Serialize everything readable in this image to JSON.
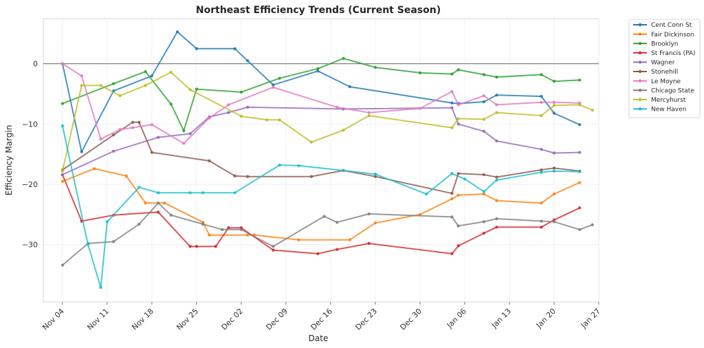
{
  "chart_data": {
    "type": "line",
    "title": "Northeast Efficiency Trends (Current Season)",
    "xlabel": "Date",
    "ylabel": "Efficiency Margin",
    "x_ticks": [
      "Nov 04",
      "Nov 11",
      "Nov 18",
      "Nov 25",
      "Dec 02",
      "Dec 09",
      "Dec 16",
      "Dec 23",
      "Dec 30",
      "Jan 06",
      "Jan 13",
      "Jan 20",
      "Jan 27"
    ],
    "x_tick_dates": [
      "2024-11-04",
      "2024-11-11",
      "2024-11-18",
      "2024-11-25",
      "2024-12-02",
      "2024-12-09",
      "2024-12-16",
      "2024-12-23",
      "2024-12-30",
      "2025-01-06",
      "2025-01-13",
      "2025-01-20",
      "2025-01-27"
    ],
    "xlim": [
      "2024-11-01",
      "2025-01-27"
    ],
    "ylim": [
      -39.5,
      7.5
    ],
    "y_ticks": [
      -30,
      -20,
      -10,
      0
    ],
    "reference_line": 0,
    "grid": true,
    "legend_position": "outside-right",
    "series": [
      {
        "name": "Cent Conn St",
        "color": "#1f77b4",
        "points": [
          [
            "2024-11-04",
            0.0
          ],
          [
            "2024-11-07",
            -14.6
          ],
          [
            "2024-11-12",
            -4.5
          ],
          [
            "2024-11-18",
            -2.0
          ],
          [
            "2024-11-22",
            5.3
          ],
          [
            "2024-11-25",
            2.5
          ],
          [
            "2024-12-01",
            2.5
          ],
          [
            "2024-12-03",
            0.5
          ],
          [
            "2024-12-07",
            -3.5
          ],
          [
            "2024-12-14",
            -1.2
          ],
          [
            "2024-12-19",
            -3.8
          ],
          [
            "2025-01-04",
            -6.5
          ],
          [
            "2025-01-05",
            -6.6
          ],
          [
            "2025-01-09",
            -6.3
          ],
          [
            "2025-01-11",
            -5.2
          ],
          [
            "2025-01-18",
            -5.4
          ],
          [
            "2025-01-20",
            -8.2
          ],
          [
            "2025-01-24",
            -10.1
          ]
        ]
      },
      {
        "name": "Fair Dickinson",
        "color": "#ff7f0e",
        "points": [
          [
            "2024-11-04",
            -19.5
          ],
          [
            "2024-11-09",
            -17.4
          ],
          [
            "2024-11-14",
            -18.6
          ],
          [
            "2024-11-17",
            -23.1
          ],
          [
            "2024-11-20",
            -23.1
          ],
          [
            "2024-11-26",
            -26.3
          ],
          [
            "2024-11-27",
            -28.4
          ],
          [
            "2024-12-03",
            -28.4
          ],
          [
            "2024-12-04",
            -28.4
          ],
          [
            "2024-12-11",
            -29.2
          ],
          [
            "2024-12-19",
            -29.2
          ],
          [
            "2024-12-23",
            -26.4
          ],
          [
            "2024-12-30",
            -25.0
          ],
          [
            "2025-01-04",
            -22.4
          ],
          [
            "2025-01-05",
            -21.8
          ],
          [
            "2025-01-09",
            -21.6
          ],
          [
            "2025-01-11",
            -22.7
          ],
          [
            "2025-01-18",
            -23.1
          ],
          [
            "2025-01-20",
            -21.6
          ],
          [
            "2025-01-24",
            -19.7
          ]
        ]
      },
      {
        "name": "Brooklyn",
        "color": "#2ca02c",
        "points": [
          [
            "2024-11-04",
            -6.6
          ],
          [
            "2024-11-12",
            -3.3
          ],
          [
            "2024-11-17",
            -1.3
          ],
          [
            "2024-11-21",
            -6.7
          ],
          [
            "2024-11-23",
            -11.1
          ],
          [
            "2024-11-25",
            -4.2
          ],
          [
            "2024-12-02",
            -4.7
          ],
          [
            "2024-12-08",
            -2.4
          ],
          [
            "2024-12-14",
            -0.8
          ],
          [
            "2024-12-18",
            0.9
          ],
          [
            "2024-12-23",
            -0.6
          ],
          [
            "2024-12-30",
            -1.5
          ],
          [
            "2025-01-04",
            -1.7
          ],
          [
            "2025-01-05",
            -1.0
          ],
          [
            "2025-01-09",
            -1.8
          ],
          [
            "2025-01-11",
            -2.2
          ],
          [
            "2025-01-18",
            -1.8
          ],
          [
            "2025-01-20",
            -2.9
          ],
          [
            "2025-01-24",
            -2.7
          ]
        ]
      },
      {
        "name": "St Francis (PA)",
        "color": "#d62728",
        "points": [
          [
            "2024-11-04",
            -18.4
          ],
          [
            "2024-11-07",
            -26.1
          ],
          [
            "2024-11-12",
            -25.1
          ],
          [
            "2024-11-19",
            -24.6
          ],
          [
            "2024-11-24",
            -30.3
          ],
          [
            "2024-11-25",
            -30.3
          ],
          [
            "2024-11-28",
            -30.3
          ],
          [
            "2024-11-30",
            -27.2
          ],
          [
            "2024-12-02",
            -27.2
          ],
          [
            "2024-12-07",
            -30.9
          ],
          [
            "2024-12-14",
            -31.5
          ],
          [
            "2024-12-17",
            -30.8
          ],
          [
            "2024-12-22",
            -29.8
          ],
          [
            "2025-01-04",
            -31.5
          ],
          [
            "2025-01-05",
            -30.2
          ],
          [
            "2025-01-09",
            -28.1
          ],
          [
            "2025-01-11",
            -27.1
          ],
          [
            "2025-01-18",
            -27.1
          ],
          [
            "2025-01-20",
            -25.9
          ],
          [
            "2025-01-24",
            -23.9
          ]
        ]
      },
      {
        "name": "Wagner",
        "color": "#9467bd",
        "points": [
          [
            "2024-11-04",
            -18.4
          ],
          [
            "2024-11-12",
            -14.5
          ],
          [
            "2024-11-19",
            -12.2
          ],
          [
            "2024-11-24",
            -11.6
          ],
          [
            "2024-11-27",
            -8.8
          ],
          [
            "2024-11-30",
            -8.1
          ],
          [
            "2024-12-03",
            -7.2
          ],
          [
            "2024-12-18",
            -7.5
          ],
          [
            "2025-01-04",
            -7.3
          ],
          [
            "2025-01-05",
            -10.0
          ],
          [
            "2025-01-09",
            -11.2
          ],
          [
            "2025-01-11",
            -12.8
          ],
          [
            "2025-01-18",
            -14.2
          ],
          [
            "2025-01-20",
            -14.8
          ],
          [
            "2025-01-24",
            -14.7
          ]
        ]
      },
      {
        "name": "Stonehill",
        "color": "#8c564b",
        "points": [
          [
            "2024-11-04",
            -17.6
          ],
          [
            "2024-11-12",
            -11.8
          ],
          [
            "2024-11-15",
            -9.7
          ],
          [
            "2024-11-16",
            -9.7
          ],
          [
            "2024-11-18",
            -14.7
          ],
          [
            "2024-11-27",
            -16.1
          ],
          [
            "2024-12-01",
            -18.6
          ],
          [
            "2024-12-03",
            -18.7
          ],
          [
            "2024-12-13",
            -18.7
          ],
          [
            "2024-12-18",
            -17.7
          ],
          [
            "2024-12-23",
            -18.7
          ],
          [
            "2025-01-04",
            -21.5
          ],
          [
            "2025-01-05",
            -18.2
          ],
          [
            "2025-01-09",
            -18.4
          ],
          [
            "2025-01-11",
            -18.8
          ],
          [
            "2025-01-18",
            -17.6
          ],
          [
            "2025-01-20",
            -17.3
          ],
          [
            "2025-01-24",
            -17.8
          ]
        ]
      },
      {
        "name": "Le Moyne",
        "color": "#e377c2",
        "points": [
          [
            "2024-11-04",
            0.0
          ],
          [
            "2024-11-07",
            -2.0
          ],
          [
            "2024-11-10",
            -12.5
          ],
          [
            "2024-11-13",
            -10.9
          ],
          [
            "2024-11-15",
            -10.6
          ],
          [
            "2024-11-18",
            -10.1
          ],
          [
            "2024-11-23",
            -13.2
          ],
          [
            "2024-11-27",
            -9.0
          ],
          [
            "2024-11-30",
            -6.8
          ],
          [
            "2024-12-07",
            -3.9
          ],
          [
            "2024-12-17",
            -7.2
          ],
          [
            "2024-12-22",
            -8.1
          ],
          [
            "2024-12-30",
            -7.4
          ],
          [
            "2025-01-04",
            -4.6
          ],
          [
            "2025-01-05",
            -6.8
          ],
          [
            "2025-01-09",
            -5.3
          ],
          [
            "2025-01-11",
            -6.8
          ],
          [
            "2025-01-18",
            -6.4
          ],
          [
            "2025-01-20",
            -6.4
          ],
          [
            "2025-01-24",
            -6.5
          ]
        ]
      },
      {
        "name": "Chicago State",
        "color": "#7f7f7f",
        "points": [
          [
            "2024-11-04",
            -33.4
          ],
          [
            "2024-11-08",
            -29.8
          ],
          [
            "2024-11-12",
            -29.5
          ],
          [
            "2024-11-16",
            -26.6
          ],
          [
            "2024-11-19",
            -23.1
          ],
          [
            "2024-11-21",
            -25.1
          ],
          [
            "2024-11-26",
            -26.6
          ],
          [
            "2024-11-29",
            -27.5
          ],
          [
            "2024-12-02",
            -27.5
          ],
          [
            "2024-12-07",
            -30.3
          ],
          [
            "2024-12-15",
            -25.3
          ],
          [
            "2024-12-17",
            -26.3
          ],
          [
            "2024-12-22",
            -24.9
          ],
          [
            "2025-01-04",
            -25.4
          ],
          [
            "2025-01-05",
            -26.9
          ],
          [
            "2025-01-09",
            -26.2
          ],
          [
            "2025-01-11",
            -25.7
          ],
          [
            "2025-01-18",
            -26.1
          ],
          [
            "2025-01-20",
            -26.2
          ],
          [
            "2025-01-24",
            -27.5
          ],
          [
            "2025-01-26",
            -26.7
          ]
        ]
      },
      {
        "name": "Mercyhurst",
        "color": "#bcbd22",
        "points": [
          [
            "2024-11-04",
            -17.8
          ],
          [
            "2024-11-07",
            -3.6
          ],
          [
            "2024-11-10",
            -3.6
          ],
          [
            "2024-11-13",
            -5.3
          ],
          [
            "2024-11-17",
            -3.6
          ],
          [
            "2024-11-21",
            -1.4
          ],
          [
            "2024-11-24",
            -4.3
          ],
          [
            "2024-12-02",
            -8.7
          ],
          [
            "2024-12-06",
            -9.3
          ],
          [
            "2024-12-08",
            -9.3
          ],
          [
            "2024-12-13",
            -13.0
          ],
          [
            "2024-12-18",
            -11.0
          ],
          [
            "2024-12-22",
            -8.6
          ],
          [
            "2025-01-04",
            -10.6
          ],
          [
            "2025-01-05",
            -9.1
          ],
          [
            "2025-01-09",
            -9.2
          ],
          [
            "2025-01-11",
            -8.1
          ],
          [
            "2025-01-18",
            -8.6
          ],
          [
            "2025-01-20",
            -6.9
          ],
          [
            "2025-01-24",
            -6.8
          ],
          [
            "2025-01-26",
            -7.7
          ]
        ]
      },
      {
        "name": "New Haven",
        "color": "#17becf",
        "points": [
          [
            "2024-11-04",
            -10.3
          ],
          [
            "2024-11-08",
            -30.0
          ],
          [
            "2024-11-10",
            -37.1
          ],
          [
            "2024-11-11",
            -26.2
          ],
          [
            "2024-11-16",
            -20.5
          ],
          [
            "2024-11-19",
            -21.4
          ],
          [
            "2024-11-24",
            -21.4
          ],
          [
            "2024-11-26",
            -21.4
          ],
          [
            "2024-12-01",
            -21.4
          ],
          [
            "2024-12-08",
            -16.8
          ],
          [
            "2024-12-11",
            -16.9
          ],
          [
            "2024-12-18",
            -17.7
          ],
          [
            "2024-12-23",
            -18.3
          ],
          [
            "2024-12-31",
            -21.6
          ],
          [
            "2025-01-04",
            -18.2
          ],
          [
            "2025-01-06",
            -19.1
          ],
          [
            "2025-01-09",
            -21.2
          ],
          [
            "2025-01-11",
            -19.3
          ],
          [
            "2025-01-18",
            -18.0
          ],
          [
            "2025-01-20",
            -17.8
          ],
          [
            "2025-01-24",
            -17.9
          ]
        ]
      }
    ]
  }
}
